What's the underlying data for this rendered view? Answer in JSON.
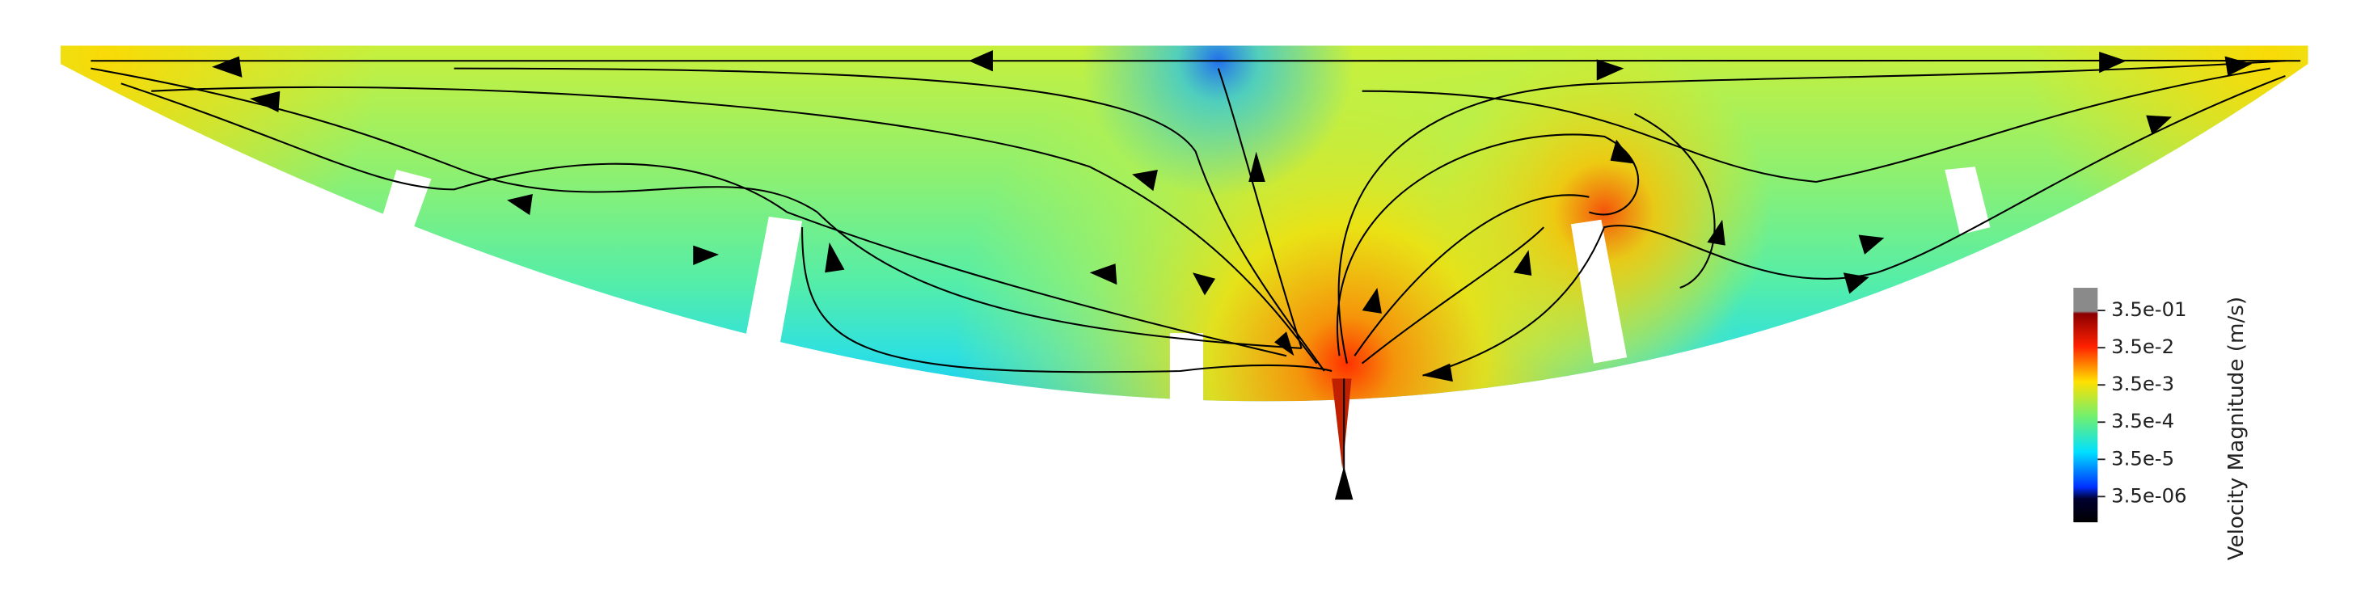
{
  "colorbar": {
    "title": "Velocity Magnitude (m/s)",
    "labels": [
      "3.5e-01",
      "3.5e-2",
      "3.5e-3",
      "3.5e-4",
      "3.5e-5",
      "3.5e-06"
    ]
  }
}
